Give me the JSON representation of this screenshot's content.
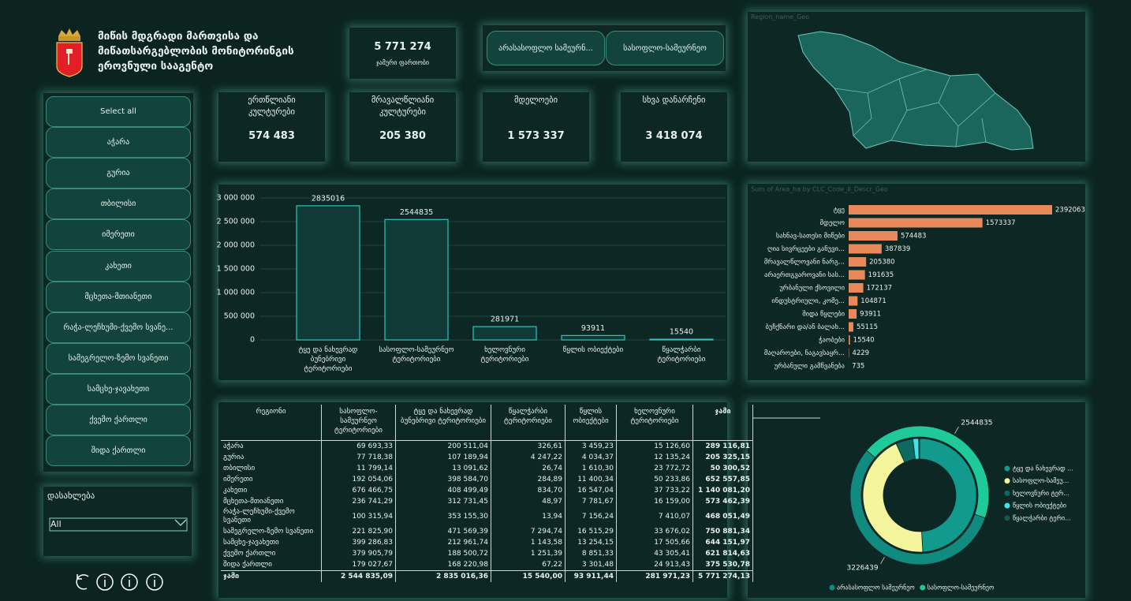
{
  "header": {
    "title_lines": [
      "მიწის მდგრადი მართვისა და",
      "მიწათსარგებლობის მონიტორინგის",
      "ეროვნული სააგენტო"
    ]
  },
  "total": {
    "value": "5 771 274",
    "label": "ჯამური ფართობი"
  },
  "filter_buttons": [
    "არასასოფლო სამეურნ...",
    "სასოფლო-სამეურნეო"
  ],
  "map": {
    "title": "Region_name_Geo"
  },
  "kpis": [
    {
      "label": "ერთწლიანი კულტურები",
      "value": "574 483"
    },
    {
      "label": "მრავალწლიანი კულტურები",
      "value": "205 380"
    },
    {
      "label": "მდელოები",
      "value": "1 573 337"
    },
    {
      "label": "სხვა დანარჩენი",
      "value": "3 418 074"
    }
  ],
  "region_slicer": [
    "Select all",
    "აჭარა",
    "გურია",
    "თბილისი",
    "იმერეთი",
    "კახეთი",
    "მცხეთა-მთიანეთი",
    "რაჭა-ლეჩხუმი-ქვემო სვანე...",
    "სამეგრელო-ზემო სვანეთი",
    "სამცხე-ჯავახეთი",
    "ქვემო ქართლი",
    "შიდა ქართლი"
  ],
  "settlement_filter": {
    "label": "დასახლება",
    "selected": "All"
  },
  "table": {
    "columns": [
      "რეგიონი",
      "სასოფლო-სამეურნეო ტერიტორიები",
      "ტყე და ნახევრად ბუნებრივი ტერიტორიები",
      "წყალჭარბი ტერიტორიები",
      "წყლის ობიექტები",
      "ხელოვნური ტერიტორიები",
      "ჯამი"
    ],
    "rows": [
      [
        "აჭარა",
        "69 693,33",
        "200 511,04",
        "326,61",
        "3 459,23",
        "15 126,60",
        "289 116,81"
      ],
      [
        "გურია",
        "77 718,38",
        "107 189,94",
        "4 247,22",
        "4 034,37",
        "12 135,24",
        "205 325,15"
      ],
      [
        "თბილისი",
        "11 799,14",
        "13 091,62",
        "26,74",
        "1 610,30",
        "23 772,72",
        "50 300,52"
      ],
      [
        "იმერეთი",
        "192 054,06",
        "398 584,70",
        "284,89",
        "11 400,34",
        "50 233,86",
        "652 557,85"
      ],
      [
        "კახეთი",
        "676 466,75",
        "408 499,49",
        "834,70",
        "16 547,04",
        "37 733,22",
        "1 140 081,20"
      ],
      [
        "მცხეთა-მთიანეთი",
        "236 741,29",
        "312 731,45",
        "48,97",
        "7 781,67",
        "16 159,00",
        "573 462,39"
      ],
      [
        "რაჭა-ლეჩხუმი-ქვემო სვანეთი",
        "100 315,94",
        "353 155,30",
        "13,94",
        "7 156,24",
        "7 410,07",
        "468 051,49"
      ],
      [
        "სამეგრელო-ზემო სვანეთი",
        "221 825,90",
        "471 569,39",
        "7 294,74",
        "16 515,29",
        "33 676,02",
        "750 881,34"
      ],
      [
        "სამცხე-ჯავახეთი",
        "399 286,83",
        "212 961,74",
        "1 143,58",
        "13 254,15",
        "17 505,66",
        "644 151,97"
      ],
      [
        "ქვემო ქართლი",
        "379 905,79",
        "188 500,72",
        "1 251,39",
        "8 851,33",
        "43 305,41",
        "621 814,63"
      ],
      [
        "შიდა ქართლი",
        "179 027,67",
        "168 220,98",
        "67,22",
        "3 301,48",
        "24 913,43",
        "375 530,78"
      ],
      [
        "ჯამი",
        "2 544 835,09",
        "2 835 016,36",
        "15 540,00",
        "93 911,44",
        "281 971,23",
        "5 771 274,13"
      ]
    ]
  },
  "chart_data": [
    {
      "type": "bar",
      "categories": [
        "ტყე და ნახევრად ბუნებრივი ტერიტორიები",
        "სასოფლო-სამეურნეო ტერიტორიები",
        "ხელოვნური ტერიტორიები",
        "წყლის ობიექტები",
        "წყალჭარბი ტერიტორიები"
      ],
      "values": [
        2835016,
        2544835,
        281971,
        93911,
        15540
      ],
      "color": "#0f3a36",
      "edge_color": "#2fc4b8",
      "ylim": [
        0,
        3000000
      ],
      "yticks": [
        0,
        {
          "value": 500000,
          "label": "500 000"
        },
        {
          "value": 1000000,
          "label": "1 000 000"
        },
        {
          "value": 1500000,
          "label": "1 500 000"
        },
        {
          "value": 2000000,
          "label": "2 000 000"
        },
        {
          "value": 2500000,
          "label": "2 500 000"
        },
        {
          "value": 3000000,
          "label": "3 000 000"
        }
      ],
      "grid": true
    },
    {
      "type": "hbar",
      "title": "Sum of Area_ha by CLC_Code_II_Descr_Geo",
      "categories": [
        "ტყე",
        "მდელო",
        "სახნავ-სათესი მიწები",
        "ღია სივრცეები განუვი...",
        "მრავალწლოვანი ნარგ...",
        "არაერთგვაროვანი სას...",
        "ურბანული ქსოვილი",
        "ინდუსტრიული, კომე...",
        "შიდა წყლები",
        "ბუჩქნარი და/ან ბალახ...",
        "ჭაობები",
        "მაღაროები, ნაგავსაყრ...",
        "ურბანული გამწვანება"
      ],
      "values": [
        2392063,
        1573337,
        574483,
        387839,
        205380,
        191635,
        172137,
        104871,
        93911,
        55115,
        15540,
        4229,
        735
      ],
      "color": "#e8895c"
    },
    {
      "type": "donut",
      "outer": {
        "categories": [
          "არასასოფლო სამეურნეო",
          "სასოფლო-სამეურნეო"
        ],
        "values": [
          3226439,
          2544835
        ],
        "colors": [
          "#118a80",
          "#1ec99a"
        ]
      },
      "inner": {
        "categories": [
          "ტყე და ნახევრად ...",
          "სასოფლო-სამეუ...",
          "ხელოვნური ტერ...",
          "წყლის ობიექტები",
          "წყალჭარბი ტერი..."
        ],
        "values": [
          2835016,
          2544835,
          281971,
          93911,
          15540
        ],
        "colors": [
          "#119a8d",
          "#f4f59c",
          "#0b6b63",
          "#3fe3ea",
          "#155a52"
        ]
      }
    }
  ]
}
